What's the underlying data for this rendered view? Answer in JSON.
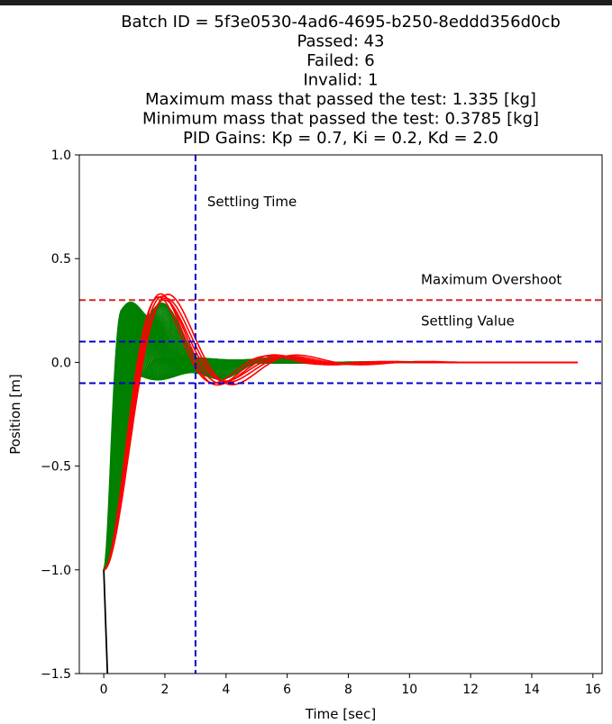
{
  "chart_data": {
    "type": "line",
    "title_lines": [
      "Batch ID = 5f3e0530-4ad6-4695-b250-8eddd356d0cb",
      "Passed: 43",
      "Failed: 6",
      "Invalid: 1",
      "Maximum mass that passed the test: 1.335 [kg]",
      "Minimum mass that passed the test: 0.3785 [kg]",
      "PID Gains: Kp = 0.7, Ki = 0.2, Kd = 2.0"
    ],
    "xlabel": "Time [sec]",
    "ylabel": "Position [m]",
    "xlim": [
      -0.8,
      16.3
    ],
    "ylim": [
      -1.5,
      1.0
    ],
    "xticks": [
      0,
      2,
      4,
      6,
      8,
      10,
      12,
      14,
      16
    ],
    "yticks": [
      1.0,
      0.5,
      0.0,
      -0.5,
      -1.0,
      -1.5
    ],
    "ytick_labels": [
      "1.0",
      "0.5",
      "0.0",
      "−0.5",
      "−1.0",
      "−1.5"
    ],
    "grid": false,
    "reference_lines": [
      {
        "orientation": "horizontal",
        "value": 0.3,
        "color": "#d62728",
        "label": "Maximum Overshoot"
      },
      {
        "orientation": "horizontal",
        "value": 0.1,
        "color": "#0000cc",
        "label": "Settling Value"
      },
      {
        "orientation": "horizontal",
        "value": -0.1,
        "color": "#0000cc",
        "label": ""
      },
      {
        "orientation": "vertical",
        "value": 3.0,
        "color": "#0000cc",
        "label": "Settling Time"
      }
    ],
    "series_groups": [
      {
        "status": "passed",
        "color": "#008000",
        "count": 43,
        "overshoot_range": [
          0.22,
          0.29
        ],
        "peak_time_range": [
          0.6,
          1.9
        ]
      },
      {
        "status": "failed",
        "color": "#ff0000",
        "count": 6,
        "overshoot_range": [
          0.3,
          0.33
        ],
        "peak_time_range": [
          1.8,
          2.1
        ]
      },
      {
        "status": "invalid",
        "color": "#000000",
        "count": 1,
        "points": [
          [
            0.0,
            -1.0
          ],
          [
            0.12,
            -1.5
          ]
        ]
      }
    ],
    "response_model": {
      "initial_value": -1.0,
      "final_value": 0.0,
      "t_start": 0.0,
      "t_end": 15.5
    }
  }
}
